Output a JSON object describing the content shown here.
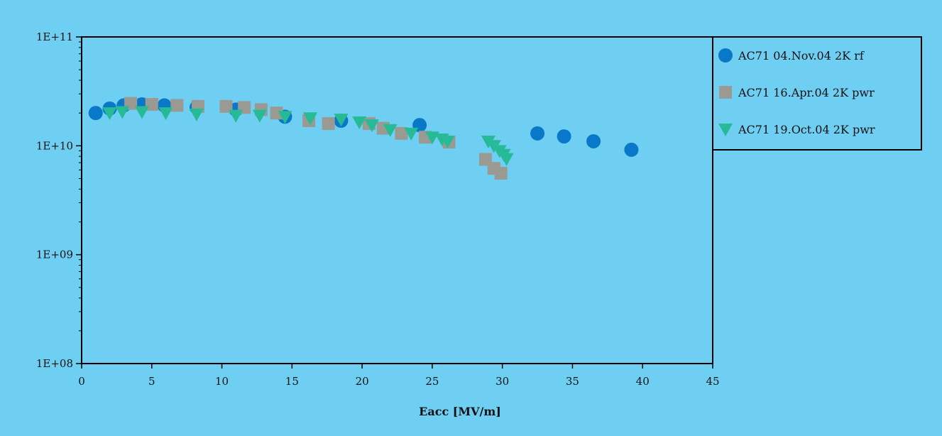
{
  "chart_data": {
    "type": "scatter",
    "xlabel": "Eacc [MV/m]",
    "ylabel": "",
    "xlim": [
      0,
      45
    ],
    "ylim": [
      100000000.0,
      100000000000.0
    ],
    "y_scale": "log",
    "x_ticks": [
      "0",
      "5",
      "10",
      "15",
      "20",
      "25",
      "30",
      "35",
      "40",
      "45"
    ],
    "y_ticks": [
      "1E+08",
      "1E+09",
      "1E+10",
      "1E+11"
    ],
    "grid": false,
    "legend_position": "top-right",
    "series": [
      {
        "name": "AC71 04.Nov.04 2K rf",
        "marker": "circle",
        "color": "#0a78c8",
        "points": [
          [
            1.0,
            20000000000.0
          ],
          [
            2.0,
            22000000000.0
          ],
          [
            3.0,
            23500000000.0
          ],
          [
            4.3,
            24000000000.0
          ],
          [
            5.9,
            23500000000.0
          ],
          [
            8.2,
            22500000000.0
          ],
          [
            11.0,
            21500000000.0
          ],
          [
            14.5,
            18500000000.0
          ],
          [
            18.5,
            17000000000.0
          ],
          [
            24.1,
            15500000000.0
          ],
          [
            32.5,
            13000000000.0
          ],
          [
            34.4,
            12200000000.0
          ],
          [
            36.5,
            11000000000.0
          ],
          [
            39.2,
            9200000000.0
          ]
        ]
      },
      {
        "name": "AC71 16.Apr.04 2K pwr",
        "marker": "square",
        "color": "#9a9a92",
        "points": [
          [
            3.5,
            24500000000.0
          ],
          [
            5.0,
            24000000000.0
          ],
          [
            6.8,
            23500000000.0
          ],
          [
            8.3,
            23000000000.0
          ],
          [
            10.3,
            23000000000.0
          ],
          [
            11.6,
            22500000000.0
          ],
          [
            12.8,
            21500000000.0
          ],
          [
            13.9,
            20000000000.0
          ],
          [
            16.2,
            17000000000.0
          ],
          [
            17.6,
            16000000000.0
          ],
          [
            20.5,
            16000000000.0
          ],
          [
            21.5,
            14500000000.0
          ],
          [
            22.8,
            13000000000.0
          ],
          [
            24.5,
            12000000000.0
          ],
          [
            26.2,
            10800000000.0
          ],
          [
            28.8,
            7500000000.0
          ],
          [
            29.4,
            6200000000.0
          ],
          [
            29.9,
            5600000000.0
          ]
        ]
      },
      {
        "name": "AC71 19.Oct.04 2K pwr",
        "marker": "triangle-down",
        "color": "#26ba96",
        "points": [
          [
            2.0,
            20000000000.0
          ],
          [
            2.9,
            20500000000.0
          ],
          [
            4.3,
            20500000000.0
          ],
          [
            6.0,
            20000000000.0
          ],
          [
            8.2,
            19500000000.0
          ],
          [
            11.0,
            19000000000.0
          ],
          [
            12.7,
            19000000000.0
          ],
          [
            14.5,
            18500000000.0
          ],
          [
            16.3,
            18000000000.0
          ],
          [
            18.5,
            17500000000.0
          ],
          [
            19.8,
            16500000000.0
          ],
          [
            20.7,
            15500000000.0
          ],
          [
            22.0,
            14000000000.0
          ],
          [
            23.5,
            13000000000.0
          ],
          [
            25.0,
            12000000000.0
          ],
          [
            25.7,
            11500000000.0
          ],
          [
            26.1,
            11000000000.0
          ],
          [
            29.0,
            11000000000.0
          ],
          [
            29.4,
            10000000000.0
          ],
          [
            29.8,
            9000000000.0
          ],
          [
            30.1,
            8300000000.0
          ],
          [
            30.3,
            7600000000.0
          ]
        ]
      }
    ]
  }
}
